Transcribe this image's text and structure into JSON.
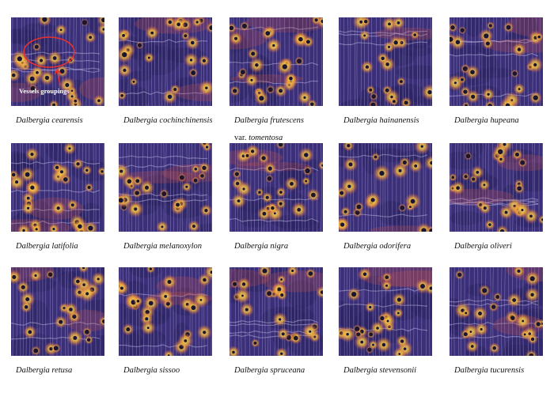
{
  "palette": {
    "base": "#3a2f78",
    "base_dark": "#2a2160",
    "ray": "#b9b4e0",
    "warm": "#d9574a",
    "hot": "#f5b73b",
    "core": "#ffe36b",
    "pore": "#1b1530",
    "annotation": "#e8322e",
    "annotation_text": "#ffffff"
  },
  "specimens": [
    {
      "genus": "Dalbergia",
      "epithet": "cearensis",
      "annotation": "Vessels groupings",
      "seed": 11,
      "density": 0.55
    },
    {
      "genus": "Dalbergia",
      "epithet": "cochinchinensis",
      "seed": 23,
      "density": 0.5
    },
    {
      "genus": "Dalbergia",
      "epithet": "frutescens",
      "var_label": "var.",
      "var_name": "tomentosa",
      "seed": 37,
      "density": 0.8
    },
    {
      "genus": "Dalbergia",
      "epithet": "hainanensis",
      "seed": 41,
      "density": 0.35
    },
    {
      "genus": "Dalbergia",
      "epithet": "hupeana",
      "seed": 53,
      "density": 0.6
    },
    {
      "genus": "Dalbergia",
      "epithet": "latifolia",
      "seed": 61,
      "density": 0.65
    },
    {
      "genus": "Dalbergia",
      "epithet": "melanoxylon",
      "seed": 71,
      "density": 0.55
    },
    {
      "genus": "Dalbergia",
      "epithet": "nigra",
      "seed": 83,
      "density": 0.6
    },
    {
      "genus": "Dalbergia",
      "epithet": "odorifera",
      "seed": 97,
      "density": 0.45
    },
    {
      "genus": "Dalbergia",
      "epithet": "oliveri",
      "seed": 101,
      "density": 0.6
    },
    {
      "genus": "Dalbergia",
      "epithet": "retusa",
      "seed": 113,
      "density": 0.5
    },
    {
      "genus": "Dalbergia",
      "epithet": "sissoo",
      "seed": 127,
      "density": 0.5
    },
    {
      "genus": "Dalbergia",
      "epithet": "spruceana",
      "seed": 131,
      "density": 0.55
    },
    {
      "genus": "Dalbergia",
      "epithet": "stevensonii",
      "seed": 139,
      "density": 0.6
    },
    {
      "genus": "Dalbergia",
      "epithet": "tucurensis",
      "seed": 151,
      "density": 0.5
    }
  ]
}
